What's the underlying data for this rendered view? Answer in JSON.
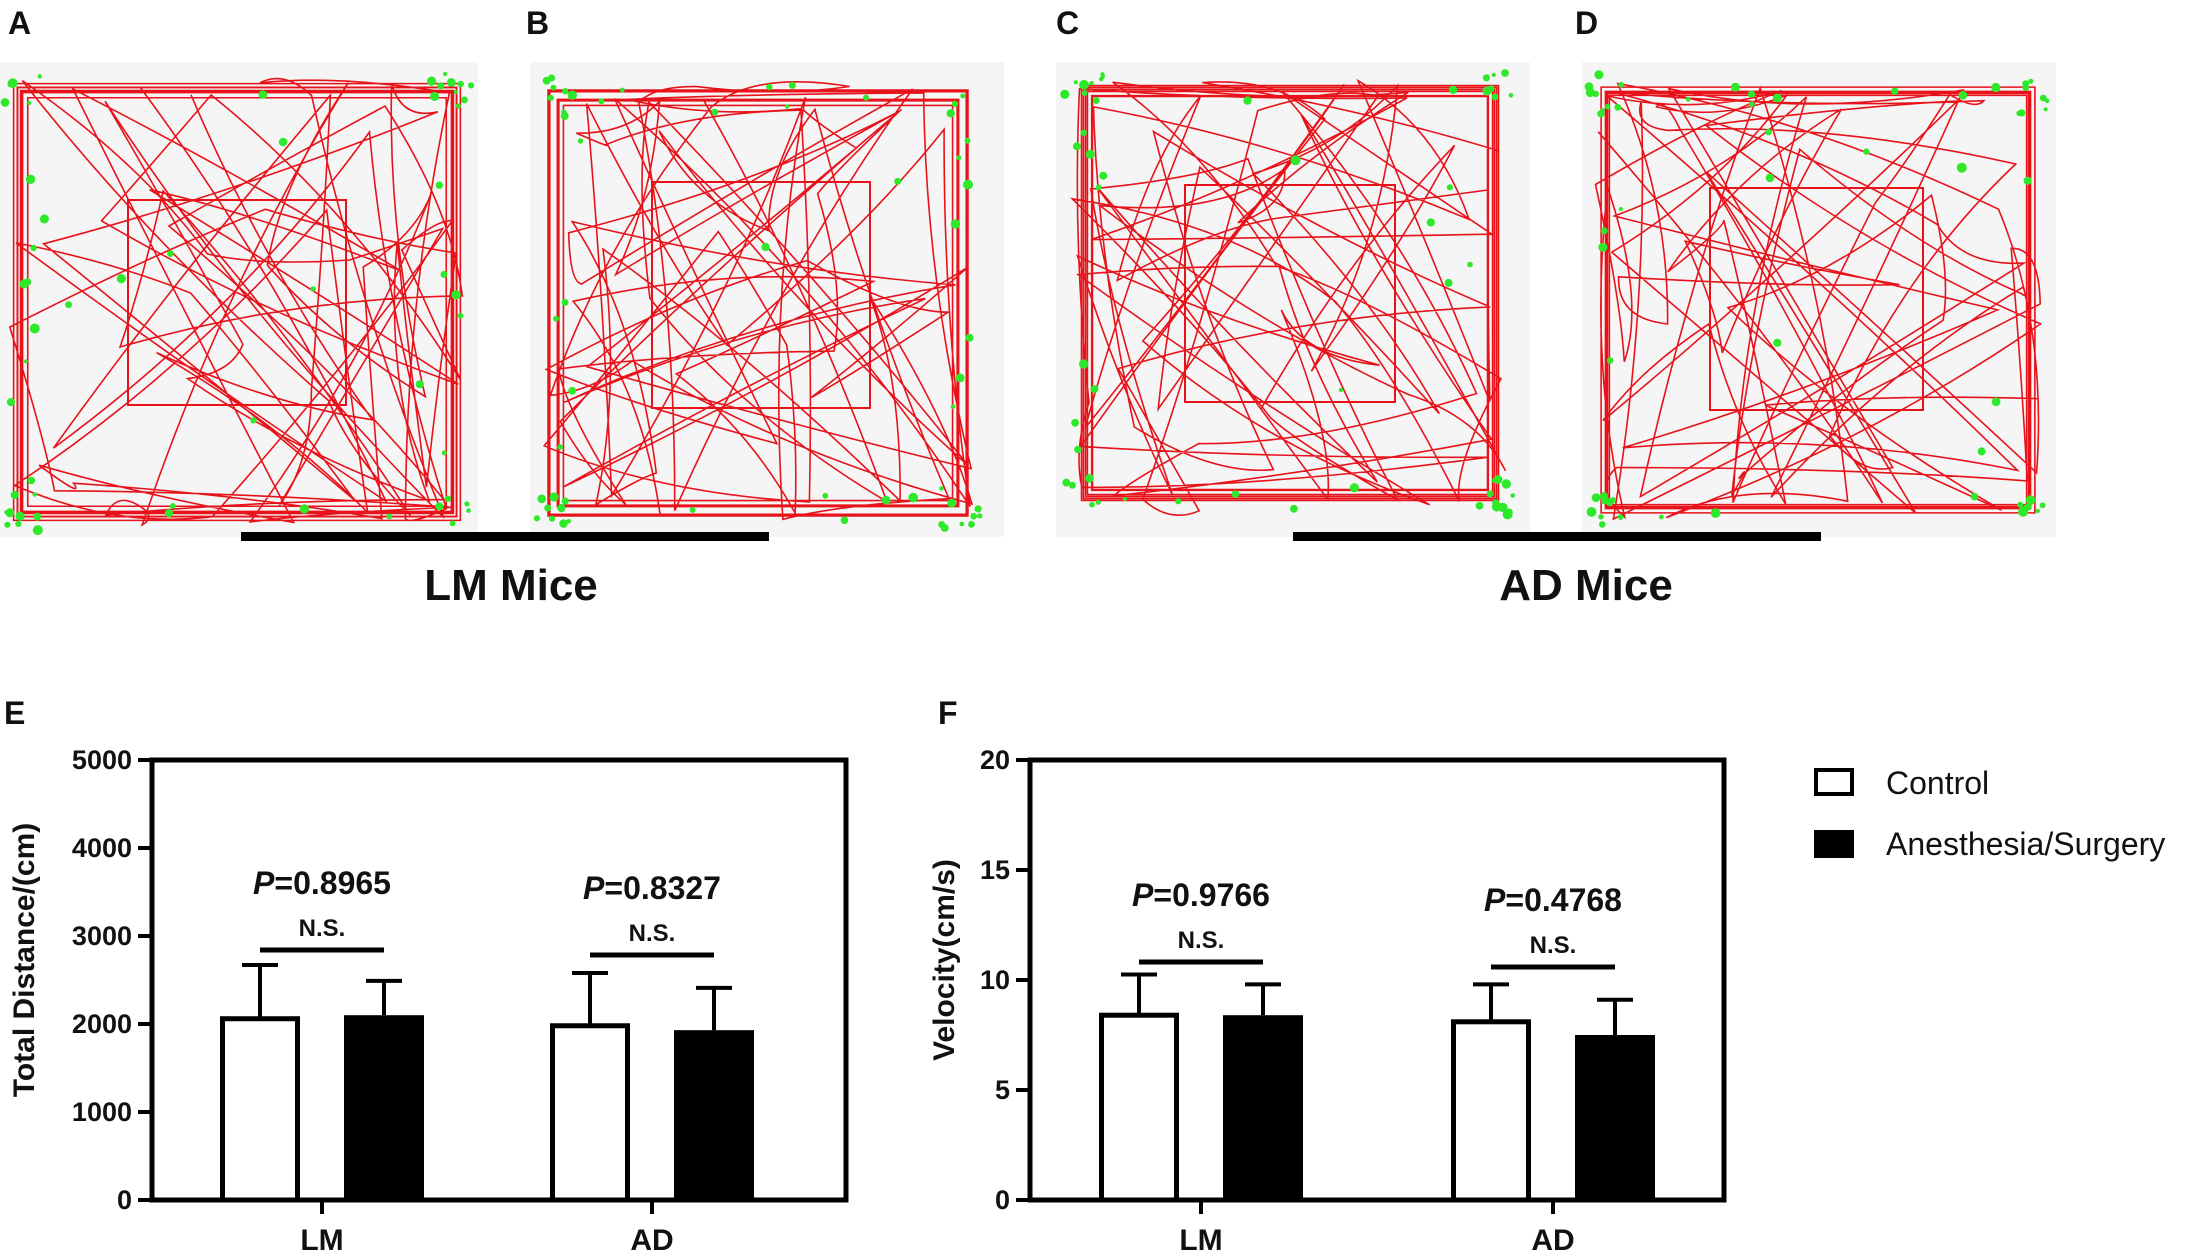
{
  "panels": {
    "A": "A",
    "B": "B",
    "C": "C",
    "D": "D",
    "E": "E",
    "F": "F"
  },
  "groups": {
    "lm_title": "LM Mice",
    "ad_title": "AD Mice"
  },
  "colors": {
    "track": "#e8121a",
    "stop": "#2ee82a",
    "arena_bg": "#f5f5f5",
    "bar_control": "#ffffff",
    "bar_surgery": "#000000",
    "axis": "#000000"
  },
  "legend": {
    "control": "Control",
    "surgery": "Anesthesia/Surgery"
  },
  "chart_data": [
    {
      "type": "bar",
      "panel": "E",
      "title": "",
      "xlabel": "",
      "ylabel": "Total Distance/(cm)",
      "ylim": [
        0,
        5000
      ],
      "yticks": [
        0,
        1000,
        2000,
        3000,
        4000,
        5000
      ],
      "yticks_text": [
        "0",
        "1000",
        "2000",
        "3000",
        "4000",
        "5000"
      ],
      "categories": [
        "LM",
        "AD"
      ],
      "series": [
        {
          "name": "Control",
          "values": [
            2060,
            1980
          ],
          "errors": [
            610,
            600
          ]
        },
        {
          "name": "Anesthesia/Surgery",
          "values": [
            2100,
            1930
          ],
          "errors": [
            390,
            480
          ]
        }
      ],
      "annotations": [
        {
          "p": "=0.8965",
          "p_prefix": "P",
          "ns": "N.S."
        },
        {
          "p": "=0.8327",
          "p_prefix": "P",
          "ns": "N.S."
        }
      ]
    },
    {
      "type": "bar",
      "panel": "F",
      "title": "",
      "xlabel": "",
      "ylabel": "Velocity(cm/s)",
      "ylim": [
        0,
        20
      ],
      "yticks": [
        0,
        5,
        10,
        15,
        20
      ],
      "yticks_text": [
        "0",
        "5",
        "10",
        "15",
        "20"
      ],
      "categories": [
        "LM",
        "AD"
      ],
      "series": [
        {
          "name": "Control",
          "values": [
            8.4,
            8.1
          ],
          "errors": [
            1.85,
            1.7
          ]
        },
        {
          "name": "Anesthesia/Surgery",
          "values": [
            8.4,
            7.5
          ],
          "errors": [
            1.4,
            1.6
          ]
        }
      ],
      "annotations": [
        {
          "p": "=0.9766",
          "p_prefix": "P",
          "ns": "N.S."
        },
        {
          "p": "=0.4768",
          "p_prefix": "P",
          "ns": "N.S."
        }
      ]
    }
  ]
}
